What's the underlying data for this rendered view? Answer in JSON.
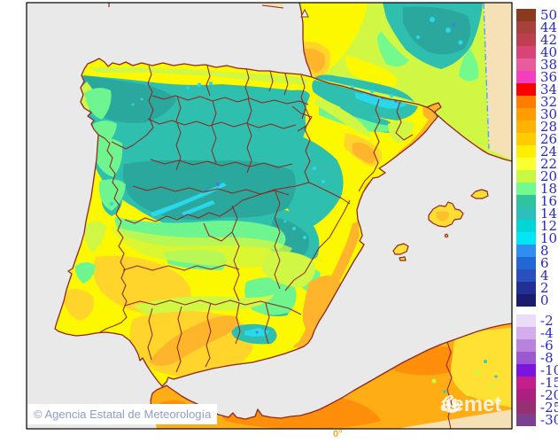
{
  "map": {
    "attribution": "© Agencia Estatal de Meteorología",
    "watermark": "aemet",
    "meridian_label": "0°",
    "sea_color": "#E9E9EA",
    "nodata_color": "#F6E0B6",
    "coast_border_color": "#8F2720",
    "frame_color": "#000000",
    "attribution_color": "#8C9FC6",
    "meridian_color": "#FFA41E",
    "domain_boundary_color": "#55A0FF",
    "watermark_color": "rgba(255,255,255,.82)"
  },
  "legend": {
    "label_color": "#2828C8",
    "items": [
      {
        "label": "50",
        "color": "#8B3A20"
      },
      {
        "label": "44",
        "color": "#A8403C"
      },
      {
        "label": "42",
        "color": "#BE4050"
      },
      {
        "label": "40",
        "color": "#D84478"
      },
      {
        "label": "38",
        "color": "#E85C9E"
      },
      {
        "label": "36",
        "color": "#F43EC0"
      },
      {
        "label": "34",
        "color": "#FA0000"
      },
      {
        "label": "32",
        "color": "#FF7C00"
      },
      {
        "label": "30",
        "color": "#FF9C00"
      },
      {
        "label": "28",
        "color": "#FFB200"
      },
      {
        "label": "26",
        "color": "#FFCC00"
      },
      {
        "label": "24",
        "color": "#FFEE00"
      },
      {
        "label": "22",
        "color": "#FAFF30"
      },
      {
        "label": "20",
        "color": "#C8F841"
      },
      {
        "label": "18",
        "color": "#74F98C"
      },
      {
        "label": "16",
        "color": "#2FC49E"
      },
      {
        "label": "14",
        "color": "#2CBFBB"
      },
      {
        "label": "12",
        "color": "#00D6D6"
      },
      {
        "label": "10",
        "color": "#00E6F6"
      },
      {
        "label": "8",
        "color": "#2E8EF2"
      },
      {
        "label": "6",
        "color": "#2268D4"
      },
      {
        "label": "4",
        "color": "#2A50BE"
      },
      {
        "label": "2",
        "color": "#233093"
      },
      {
        "label": "0",
        "color": "#1B1B70"
      },
      {
        "spacer": true
      },
      {
        "label": "-2",
        "color": "#E9DDF7"
      },
      {
        "label": "-4",
        "color": "#D3ADEC"
      },
      {
        "label": "-6",
        "color": "#B883DC"
      },
      {
        "label": "-8",
        "color": "#9C58D2"
      },
      {
        "label": "-10",
        "color": "#7D13DE"
      },
      {
        "label": "-15",
        "color": "#C41E8C"
      },
      {
        "label": "-20",
        "color": "#AC2180"
      },
      {
        "label": "-25",
        "color": "#963072"
      },
      {
        "label": "-30",
        "color": "#7C4090"
      }
    ]
  }
}
